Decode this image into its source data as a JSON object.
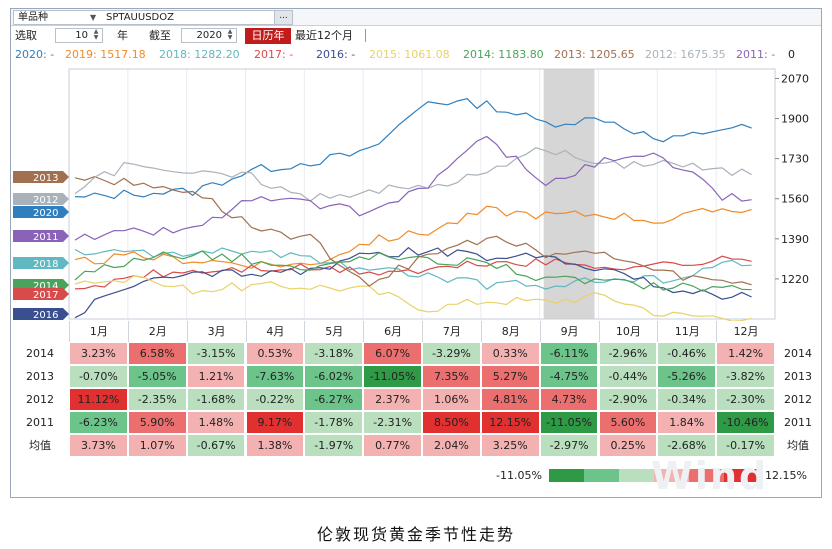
{
  "toolbar": {
    "variety_label": "单品种",
    "dropdown_icon": "▼",
    "symbol": "SPTAUUSDOZ",
    "more_button": "...",
    "select_label": "选取",
    "years_value": "10",
    "years_unit": "年",
    "until_label": "截至",
    "until_value": "2020",
    "calendar_year_button": "日历年",
    "last12_button": "最近12个月"
  },
  "legend": [
    {
      "text": "2020: -",
      "color": "#2f7fbf"
    },
    {
      "text": "2019: 1517.18",
      "color": "#f08c28"
    },
    {
      "text": "2018: 1282.20",
      "color": "#5fb8c2"
    },
    {
      "text": "2017: -",
      "color": "#d94a4a"
    },
    {
      "text": "2016: -",
      "color": "#3a4f8f"
    },
    {
      "text": "2015: 1061.08",
      "color": "#e8d26a"
    },
    {
      "text": "2014: 1183.80",
      "color": "#4aa35a"
    },
    {
      "text": "2013: 1205.65",
      "color": "#a07050"
    },
    {
      "text": "2012: 1675.35",
      "color": "#a9b2bb"
    },
    {
      "text": "2011: -",
      "color": "#8a63b8"
    },
    {
      "text": "0",
      "color": "#222222"
    }
  ],
  "chart_data": {
    "type": "line",
    "title": "伦敦现货黄金季节性走势",
    "x_categories": [
      "1月",
      "2月",
      "3月",
      "4月",
      "5月",
      "6月",
      "7月",
      "8月",
      "9月",
      "10月",
      "11月",
      "12月"
    ],
    "y_ticks": [
      1220,
      1390,
      1560,
      1730,
      1900,
      2070
    ],
    "ylim": [
      1050,
      2110
    ],
    "highlight_month": "9月",
    "series": [
      {
        "name": "2020",
        "color": "#2f7fbf",
        "values": [
          1560,
          1585,
          1590,
          1680,
          1715,
          1760,
          1975,
          1960,
          1880,
          1900,
          1800,
          1860
        ]
      },
      {
        "name": "2019",
        "color": "#f08c28",
        "values": [
          1290,
          1315,
          1300,
          1285,
          1280,
          1380,
          1420,
          1510,
          1490,
          1495,
          1465,
          1517
        ]
      },
      {
        "name": "2018",
        "color": "#5fb8c2",
        "values": [
          1330,
          1330,
          1325,
          1340,
          1300,
          1265,
          1230,
          1195,
          1195,
          1215,
          1220,
          1282
        ]
      },
      {
        "name": "2017",
        "color": "#d94a4a",
        "values": [
          1160,
          1235,
          1250,
          1265,
          1265,
          1250,
          1255,
          1290,
          1290,
          1275,
          1280,
          1300
        ]
      },
      {
        "name": "2016",
        "color": "#3a4f8f",
        "values": [
          1075,
          1200,
          1235,
          1250,
          1255,
          1320,
          1340,
          1310,
          1320,
          1265,
          1180,
          1150
        ]
      },
      {
        "name": "2015",
        "color": "#e8d26a",
        "values": [
          1215,
          1215,
          1175,
          1190,
          1190,
          1175,
          1095,
          1130,
          1125,
          1150,
          1070,
          1061
        ]
      },
      {
        "name": "2014",
        "color": "#4aa35a",
        "values": [
          1230,
          1300,
          1330,
          1300,
          1255,
          1320,
          1295,
          1295,
          1215,
          1210,
          1190,
          1184
        ]
      },
      {
        "name": "2013",
        "color": "#a07050",
        "values": [
          1660,
          1620,
          1595,
          1440,
          1390,
          1200,
          1320,
          1395,
          1330,
          1325,
          1245,
          1206
        ]
      },
      {
        "name": "2012",
        "color": "#a9b2bb",
        "values": [
          1590,
          1720,
          1665,
          1655,
          1555,
          1600,
          1610,
          1670,
          1775,
          1700,
          1720,
          1675
        ]
      },
      {
        "name": "2011",
        "color": "#8a63b8",
        "values": [
          1390,
          1420,
          1430,
          1560,
          1540,
          1500,
          1620,
          1820,
          1620,
          1720,
          1740,
          1570
        ]
      }
    ],
    "side_labels": [
      "2013",
      "2012",
      "2020",
      "2011",
      "2018",
      "2014",
      "2017",
      "2016"
    ]
  },
  "table": {
    "rows": [
      {
        "year": "2014",
        "values": [
          "3.23%",
          "6.58%",
          "-3.15%",
          "0.53%",
          "-3.18%",
          "6.07%",
          "-3.29%",
          "0.33%",
          "-6.11%",
          "-2.96%",
          "-0.46%",
          "1.42%"
        ]
      },
      {
        "year": "2013",
        "values": [
          "-0.70%",
          "-5.05%",
          "1.21%",
          "-7.63%",
          "-6.02%",
          "-11.05%",
          "7.35%",
          "5.27%",
          "-4.75%",
          "-0.44%",
          "-5.26%",
          "-3.82%"
        ]
      },
      {
        "year": "2012",
        "values": [
          "11.12%",
          "-2.35%",
          "-1.68%",
          "-0.22%",
          "-6.27%",
          "2.37%",
          "1.06%",
          "4.81%",
          "4.73%",
          "-2.90%",
          "-0.34%",
          "-2.30%"
        ]
      },
      {
        "year": "2011",
        "values": [
          "-6.23%",
          "5.90%",
          "1.48%",
          "9.17%",
          "-1.78%",
          "-2.31%",
          "8.50%",
          "12.15%",
          "-11.05%",
          "5.60%",
          "1.84%",
          "-10.46%"
        ]
      }
    ],
    "average": {
      "label": "均值",
      "values": [
        "3.73%",
        "1.07%",
        "-0.67%",
        "1.38%",
        "-1.97%",
        "0.77%",
        "2.04%",
        "3.25%",
        "-2.97%",
        "0.25%",
        "-2.68%",
        "-0.17%"
      ]
    }
  },
  "scale": {
    "min": "-11.05%",
    "max": "12.15%"
  },
  "watermark": "Wind",
  "caption": "伦敦现货黄金季节性走势"
}
